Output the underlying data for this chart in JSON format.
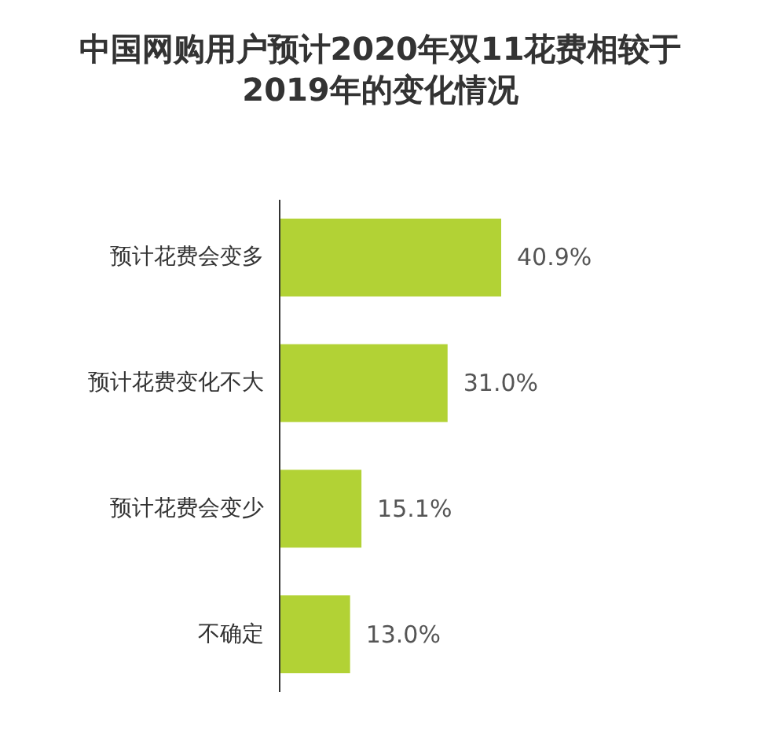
{
  "chart_data": {
    "type": "bar",
    "orientation": "horizontal",
    "title": "中国网购用户预计2020年双11花费相较于2019年的变化情况",
    "categories": [
      "预计花费会变多",
      "预计花费变化不大",
      "预计花费会变少",
      "不确定"
    ],
    "values": [
      40.9,
      31.0,
      15.1,
      13.0
    ],
    "value_labels": [
      "40.9%",
      "31.0%",
      "15.1%",
      "13.0%"
    ],
    "color": "#b2d235"
  }
}
